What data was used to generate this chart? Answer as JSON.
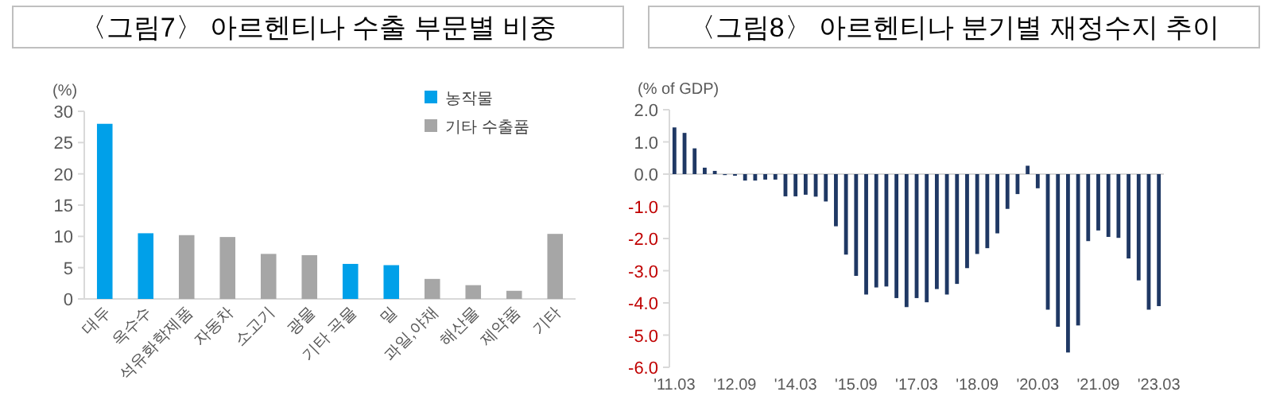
{
  "chart_data": [
    {
      "type": "bar",
      "title": "〈그림7〉 아르헨티나 수출 부문별 비중",
      "ylabel": "(%)",
      "categories": [
        "대두",
        "옥수수",
        "석유화학제품",
        "자동차",
        "소고기",
        "광물",
        "기타 곡물",
        "밀",
        "과일,야채",
        "해산물",
        "제약품",
        "기타"
      ],
      "stacked": true,
      "series": [
        {
          "name": "농작물",
          "color": "#00a0e9",
          "values": [
            28,
            10.5,
            null,
            null,
            null,
            null,
            5.6,
            5.4,
            null,
            null,
            null,
            null
          ]
        },
        {
          "name": "기타 수출품",
          "color": "#a6a6a6",
          "values": [
            null,
            null,
            10.2,
            9.9,
            7.2,
            7.0,
            null,
            null,
            3.2,
            2.2,
            1.3,
            10.4
          ]
        }
      ],
      "ylim": [
        0,
        30
      ],
      "yticks": [
        0,
        5,
        10,
        15,
        20,
        25,
        30
      ],
      "legend": "top right"
    },
    {
      "type": "bar",
      "title": "〈그림8〉 아르헨티나 분기별 재정수지 추이",
      "ylabel": "(% of GDP)",
      "categories": [
        "'11.03",
        null,
        null,
        null,
        null,
        null,
        "'12.09",
        null,
        null,
        null,
        null,
        null,
        "'14.03",
        null,
        null,
        null,
        null,
        null,
        "'15.09",
        null,
        null,
        null,
        null,
        null,
        "'17.03",
        null,
        null,
        null,
        null,
        null,
        "'18.09",
        null,
        null,
        null,
        null,
        null,
        "'20.03",
        null,
        null,
        null,
        null,
        null,
        "'21.09",
        null,
        null,
        null,
        null,
        null,
        "'23.03"
      ],
      "color": "#1f3864",
      "values": [
        1.45,
        1.28,
        0.8,
        0.2,
        0.1,
        -0.03,
        -0.05,
        -0.2,
        -0.2,
        -0.17,
        -0.17,
        -0.69,
        -0.69,
        -0.64,
        -0.7,
        -0.85,
        -1.62,
        -2.5,
        -3.16,
        -3.74,
        -3.52,
        -3.49,
        -3.85,
        -4.13,
        -3.85,
        -3.98,
        -3.57,
        -3.74,
        -3.41,
        -2.92,
        -2.48,
        -2.3,
        -1.84,
        -1.08,
        -0.62,
        0.26,
        -0.44,
        -4.21,
        -4.74,
        -5.54,
        -4.7,
        -2.08,
        -1.75,
        -1.95,
        -1.98,
        -2.62,
        -3.3,
        -4.21,
        -4.1
      ],
      "ylim": [
        -6,
        2
      ],
      "yticks": [
        {
          "value": 2,
          "label": "2.0"
        },
        {
          "value": 1,
          "label": "1.0"
        },
        {
          "value": 0,
          "label": "0.0"
        },
        {
          "value": -1,
          "label": "-1.0"
        },
        {
          "value": -2,
          "label": "-2.0"
        },
        {
          "value": -3,
          "label": "-3.0"
        },
        {
          "value": -4,
          "label": "-4.0"
        },
        {
          "value": -5,
          "label": "-5.0"
        },
        {
          "value": -6,
          "label": "-6.0"
        }
      ]
    }
  ]
}
